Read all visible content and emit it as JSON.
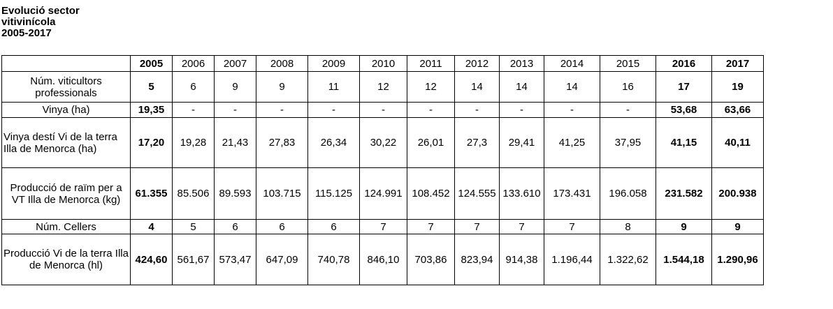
{
  "title_lines": [
    "Evolució sector",
    "vitivinícola",
    "2005-2017"
  ],
  "years": [
    "2005",
    "2006",
    "2007",
    "2008",
    "2009",
    "2010",
    "2011",
    "2012",
    "2013",
    "2014",
    "2015",
    "2016",
    "2017"
  ],
  "bold_years": [
    "2005",
    "2016",
    "2017"
  ],
  "rows": [
    {
      "label": "Núm. viticultors professionals",
      "values": [
        "5",
        "6",
        "9",
        "9",
        "11",
        "12",
        "12",
        "14",
        "14",
        "14",
        "16",
        "17",
        "19"
      ]
    },
    {
      "label": "Vinya (ha)",
      "values": [
        "19,35",
        "-",
        "-",
        "-",
        "-",
        "-",
        "-",
        "-",
        "-",
        "-",
        "-",
        "53,68",
        "63,66"
      ]
    },
    {
      "label": "Vinya destí Vi de la terra Illa de Menorca (ha)",
      "values": [
        "17,20",
        "19,28",
        "21,43",
        "27,83",
        "26,34",
        "30,22",
        "26,01",
        "27,3",
        "29,41",
        "41,25",
        "37,95",
        "41,15",
        "40,11"
      ]
    },
    {
      "label": "Producció de raïm per a VT Illa de Menorca (kg)",
      "values": [
        "61.355",
        "85.506",
        "89.593",
        "103.715",
        "115.125",
        "124.991",
        "108.452",
        "124.555",
        "133.610",
        "173.431",
        "196.058",
        "231.582",
        "200.938"
      ]
    },
    {
      "label": "Núm. Cellers",
      "values": [
        "4",
        "5",
        "6",
        "6",
        "6",
        "7",
        "7",
        "7",
        "7",
        "7",
        "8",
        "9",
        "9"
      ]
    },
    {
      "label": "Producció Vi de la terra Illa de Menorca (hl)",
      "values": [
        "424,60",
        "561,67",
        "573,47",
        "647,09",
        "740,78",
        "846,10",
        "703,86",
        "823,94",
        "914,38",
        "1.196,44",
        "1.322,62",
        "1.544,18",
        "1.290,96"
      ]
    }
  ]
}
